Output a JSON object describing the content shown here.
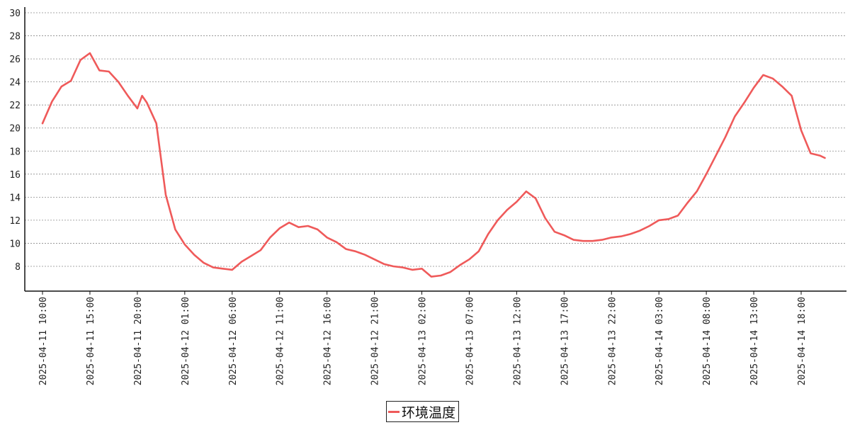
{
  "chart_data": {
    "type": "line",
    "title": "",
    "xlabel": "",
    "ylabel": "",
    "ylim": [
      6,
      30
    ],
    "yticks": [
      8,
      10,
      12,
      14,
      16,
      18,
      20,
      22,
      24,
      26,
      28,
      30
    ],
    "grid": true,
    "legend_position": "bottom-center",
    "x_tick_labels": [
      "2025-04-11 10:00",
      "2025-04-11 15:00",
      "2025-04-11 20:00",
      "2025-04-12 01:00",
      "2025-04-12 06:00",
      "2025-04-12 11:00",
      "2025-04-12 16:00",
      "2025-04-12 21:00",
      "2025-04-13 02:00",
      "2025-04-13 07:00",
      "2025-04-13 12:00",
      "2025-04-13 17:00",
      "2025-04-13 22:00",
      "2025-04-14 03:00",
      "2025-04-14 08:00",
      "2025-04-14 13:00",
      "2025-04-14 18:00"
    ],
    "series": [
      {
        "name": "环境温度",
        "color": "#ef5a5a",
        "x": [
          "2025-04-11 10:00",
          "2025-04-11 11:00",
          "2025-04-11 12:00",
          "2025-04-11 13:00",
          "2025-04-11 14:00",
          "2025-04-11 15:00",
          "2025-04-11 16:00",
          "2025-04-11 17:00",
          "2025-04-11 18:00",
          "2025-04-11 19:00",
          "2025-04-11 20:00",
          "2025-04-11 20:30",
          "2025-04-11 21:00",
          "2025-04-11 22:00",
          "2025-04-11 23:00",
          "2025-04-12 00:00",
          "2025-04-12 01:00",
          "2025-04-12 02:00",
          "2025-04-12 03:00",
          "2025-04-12 04:00",
          "2025-04-12 05:00",
          "2025-04-12 06:00",
          "2025-04-12 07:00",
          "2025-04-12 08:00",
          "2025-04-12 09:00",
          "2025-04-12 10:00",
          "2025-04-12 11:00",
          "2025-04-12 12:00",
          "2025-04-12 13:00",
          "2025-04-12 14:00",
          "2025-04-12 15:00",
          "2025-04-12 16:00",
          "2025-04-12 17:00",
          "2025-04-12 18:00",
          "2025-04-12 19:00",
          "2025-04-12 20:00",
          "2025-04-12 21:00",
          "2025-04-12 22:00",
          "2025-04-12 23:00",
          "2025-04-13 00:00",
          "2025-04-13 01:00",
          "2025-04-13 02:00",
          "2025-04-13 03:00",
          "2025-04-13 04:00",
          "2025-04-13 05:00",
          "2025-04-13 06:00",
          "2025-04-13 07:00",
          "2025-04-13 08:00",
          "2025-04-13 09:00",
          "2025-04-13 10:00",
          "2025-04-13 11:00",
          "2025-04-13 12:00",
          "2025-04-13 13:00",
          "2025-04-13 14:00",
          "2025-04-13 15:00",
          "2025-04-13 16:00",
          "2025-04-13 17:00",
          "2025-04-13 18:00",
          "2025-04-13 19:00",
          "2025-04-13 20:00",
          "2025-04-13 21:00",
          "2025-04-13 22:00",
          "2025-04-13 23:00",
          "2025-04-14 00:00",
          "2025-04-14 01:00",
          "2025-04-14 02:00",
          "2025-04-14 03:00",
          "2025-04-14 04:00",
          "2025-04-14 05:00",
          "2025-04-14 06:00",
          "2025-04-14 07:00",
          "2025-04-14 08:00",
          "2025-04-14 09:00",
          "2025-04-14 10:00",
          "2025-04-14 11:00",
          "2025-04-14 12:00",
          "2025-04-14 13:00",
          "2025-04-14 14:00",
          "2025-04-14 15:00",
          "2025-04-14 16:00",
          "2025-04-14 17:00",
          "2025-04-14 18:00",
          "2025-04-14 19:00",
          "2025-04-14 20:00",
          "2025-04-14 20:30"
        ],
        "values": [
          20.4,
          22.3,
          23.6,
          24.1,
          25.9,
          26.5,
          25.0,
          24.9,
          24.0,
          22.8,
          21.7,
          22.8,
          22.2,
          20.4,
          14.2,
          11.2,
          9.9,
          9.0,
          8.3,
          7.9,
          7.8,
          7.7,
          8.4,
          8.9,
          9.4,
          10.5,
          11.3,
          11.8,
          11.4,
          11.5,
          11.2,
          10.5,
          10.1,
          9.5,
          9.3,
          9.0,
          8.6,
          8.2,
          8.0,
          7.9,
          7.7,
          7.8,
          7.1,
          7.2,
          7.5,
          8.1,
          8.6,
          9.3,
          10.8,
          12.0,
          12.9,
          13.6,
          14.5,
          13.9,
          12.2,
          11.0,
          10.7,
          10.3,
          10.2,
          10.2,
          10.3,
          10.5,
          10.6,
          10.8,
          11.1,
          11.5,
          12.0,
          12.1,
          12.4,
          13.5,
          14.5,
          16.0,
          17.6,
          19.2,
          21.0,
          22.2,
          23.5,
          24.6,
          24.3,
          23.6,
          22.8,
          19.8,
          17.8,
          17.6,
          17.4
        ]
      }
    ]
  }
}
